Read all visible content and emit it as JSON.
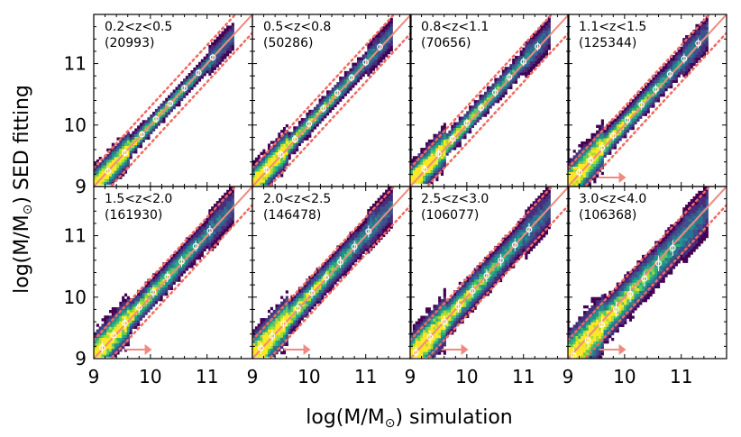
{
  "chart_data": {
    "type": "heatmap",
    "xlabel_main": "log(M/M",
    "ylabel_main": "log(M/M",
    "xlabel_suffix": ") simulation",
    "ylabel_suffix": ") SED fitting",
    "sun_symbol": "⊙",
    "xlim": [
      9.0,
      11.8
    ],
    "ylim": [
      9.0,
      11.8
    ],
    "x_ticks": [
      9,
      10,
      11
    ],
    "y_ticks": [
      9,
      10,
      11
    ],
    "x_tick_labels": [
      "9",
      "10",
      "11"
    ],
    "y_tick_labels": [
      "9",
      "10",
      "11"
    ],
    "one_to_one_line": {
      "slope": 1,
      "offset": 0,
      "color": "#f08a80"
    },
    "scatter_bounds": {
      "offset_dex": 0.3,
      "style": "dotted",
      "color": "#f06a62"
    },
    "panels": [
      {
        "redshift_label": "0.2<z<0.5",
        "count_label": "(20993)",
        "median_offset": 0.0,
        "spread": 0.07,
        "sed_lower": 9.0,
        "arrow": false,
        "medians_x": [
          9.25,
          9.55,
          9.85,
          10.1,
          10.35,
          10.6,
          10.85,
          11.1
        ]
      },
      {
        "redshift_label": "0.5<z<0.8",
        "count_label": "(50286)",
        "median_offset": 0.02,
        "spread": 0.08,
        "sed_lower": 9.0,
        "arrow": false,
        "medians_x": [
          9.25,
          9.5,
          9.75,
          10.0,
          10.25,
          10.5,
          10.75,
          11.0,
          11.25
        ]
      },
      {
        "redshift_label": "0.8<z<1.1",
        "count_label": "(70656)",
        "median_offset": 0.03,
        "spread": 0.09,
        "sed_lower": 9.0,
        "arrow": false,
        "medians_x": [
          9.25,
          9.5,
          9.75,
          10.0,
          10.25,
          10.5,
          10.75,
          11.0,
          11.25
        ]
      },
      {
        "redshift_label": "1.1<z<1.5",
        "count_label": "(125344)",
        "median_offset": 0.03,
        "spread": 0.1,
        "sed_lower": 9.0,
        "arrow": true,
        "medians_x": [
          9.2,
          9.4,
          9.6,
          9.8,
          10.05,
          10.3,
          10.55,
          10.8,
          11.05,
          11.3
        ]
      },
      {
        "redshift_label": "1.5<z<2.0",
        "count_label": "(161930)",
        "median_offset": 0.03,
        "spread": 0.11,
        "sed_lower": 9.0,
        "arrow": true,
        "medians_x": [
          9.15,
          9.35,
          9.55,
          9.8,
          10.05,
          10.3,
          10.55,
          10.8,
          11.05
        ]
      },
      {
        "redshift_label": "2.0<z<2.5",
        "count_label": "(146478)",
        "median_offset": 0.02,
        "spread": 0.12,
        "sed_lower": 9.0,
        "arrow": true,
        "medians_x": [
          9.15,
          9.35,
          9.55,
          9.8,
          10.05,
          10.3,
          10.55,
          10.8,
          11.05
        ]
      },
      {
        "redshift_label": "2.5<z<3.0",
        "count_label": "(106077)",
        "median_offset": 0.0,
        "spread": 0.13,
        "sed_lower": 9.0,
        "arrow": true,
        "medians_x": [
          9.1,
          9.35,
          9.6,
          9.85,
          10.1,
          10.35,
          10.6,
          10.85,
          11.1
        ]
      },
      {
        "redshift_label": "3.0<z<4.0",
        "count_label": "(106368)",
        "median_offset": -0.05,
        "spread": 0.16,
        "sed_lower": 9.0,
        "arrow": true,
        "medians_x": [
          9.1,
          9.35,
          9.6,
          9.85,
          10.1,
          10.35,
          10.6,
          10.85
        ]
      }
    ],
    "colormap": [
      "#440154",
      "#472d7b",
      "#3b528b",
      "#2c728e",
      "#21918c",
      "#28ae80",
      "#5ec962",
      "#addc30",
      "#fde725"
    ]
  }
}
